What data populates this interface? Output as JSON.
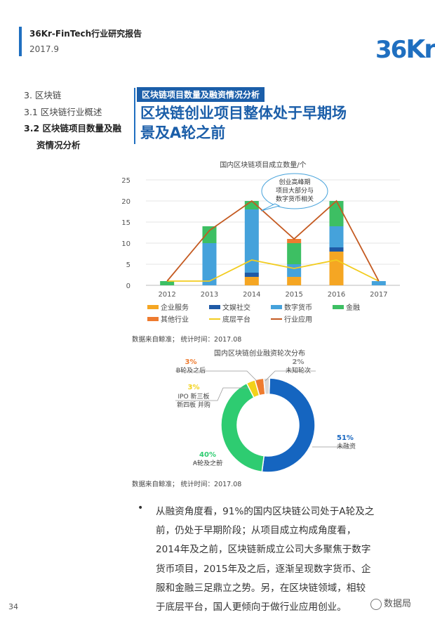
{
  "header": {
    "title": "36Kr-FinTech行业研究报告",
    "date": "2017.9",
    "logo_num": "36",
    "logo_kr": "Kr"
  },
  "toc": {
    "item1": "3. 区块链",
    "item2": "3.1 区块链行业概述",
    "item3_line1": "3.2 区块链项目数量及融",
    "item3_line2": "资情况分析"
  },
  "section_tag": "区块链项目数量及融资情况分析",
  "headline_line1": "区块链创业项目整体处于早期场",
  "headline_line2": "景及A轮之前",
  "chart_data": [
    {
      "type": "bar",
      "title": "国内区块链项目成立数量/个",
      "categories": [
        "2012",
        "2013",
        "2014",
        "2015",
        "2016",
        "2017"
      ],
      "ylim": [
        0,
        25
      ],
      "yticks": [
        0,
        5,
        10,
        15,
        20,
        25
      ],
      "stacked": true,
      "series": [
        {
          "name": "企业服务",
          "kind": "bar",
          "color": "#f5a623",
          "values": [
            0,
            0,
            2,
            2,
            8,
            0
          ]
        },
        {
          "name": "文娱社交",
          "kind": "bar",
          "color": "#1f5aa6",
          "values": [
            0,
            0,
            1,
            0,
            1,
            0
          ]
        },
        {
          "name": "数字货币",
          "kind": "bar",
          "color": "#45a2db",
          "values": [
            0,
            10,
            15,
            3,
            5,
            1
          ]
        },
        {
          "name": "金融",
          "kind": "bar",
          "color": "#3dbf63",
          "values": [
            1,
            4,
            2,
            5,
            6,
            0
          ]
        },
        {
          "name": "其他行业",
          "kind": "bar",
          "color": "#ee7b2f",
          "values": [
            0,
            0,
            0,
            1,
            0,
            0
          ]
        },
        {
          "name": "底层平台",
          "kind": "line",
          "color": "#f2cc1f",
          "values": [
            1,
            1,
            6,
            4,
            6,
            1
          ]
        },
        {
          "name": "行业应用",
          "kind": "line",
          "color": "#c45a21",
          "values": [
            1,
            13,
            20,
            11,
            20,
            1
          ]
        }
      ],
      "annotation": [
        "创业高峰期",
        "项目大部分与",
        "数字货币相关"
      ],
      "source": "数据来自鲸准； 统计时间：2017.08"
    },
    {
      "type": "pie",
      "title": "国内区块链创业融资轮次分布",
      "slices": [
        {
          "name": "未融资",
          "value": 51,
          "label": "51%",
          "color": "#1565c0"
        },
        {
          "name": "A轮及之前",
          "value": 40,
          "label": "40%",
          "color": "#2ecc71"
        },
        {
          "name": "IPO 新三板 新四板 并购",
          "value": 3,
          "label": "3%",
          "color": "#f2d21a"
        },
        {
          "name": "B轮及之后",
          "value": 3,
          "label": "3%",
          "color": "#ee7b2f"
        },
        {
          "name": "未知轮次",
          "value": 2,
          "label": "2%",
          "color": "#d9d9d9"
        }
      ],
      "source": "数据来自鲸准； 统计时间：2017.08"
    }
  ],
  "body_lines": [
    "从融资角度看，91%的国内区块链公司处于A轮及之",
    "前，仍处于早期阶段；从项目成立构成角度看，",
    "2014年及之前，区块链新成立公司大多聚焦于数字",
    "货币项目，2015年及之后，逐渐呈现数字货币、企",
    "服和金融三足鼎立之势。另，在区块链领域，相较",
    "于底层平台，国人更倾向于做行业应用创业。"
  ],
  "bullet": "•",
  "page_number": "34",
  "watermark": "数据局"
}
